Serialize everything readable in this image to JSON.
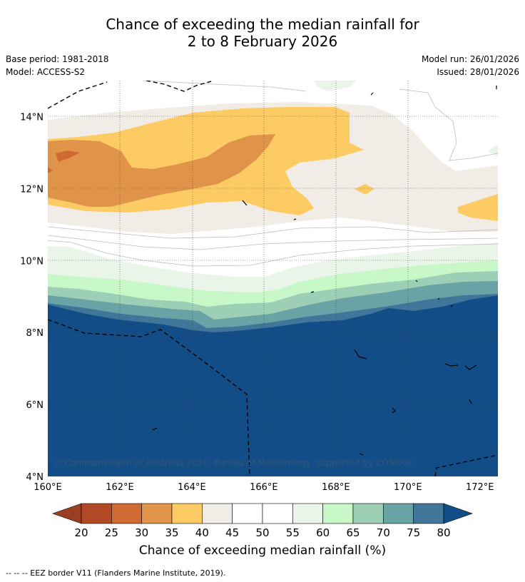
{
  "title_line1": "Chance of exceeding the median rainfall for",
  "title_line2": "2 to 8 February 2026",
  "base_period": "Base period: 1981-2018",
  "model": "Model: ACCESS-S2",
  "model_run": "Model run: 26/01/2026",
  "issued": "Issued: 28/01/2026",
  "copyright": "© Commonwealth of Australia 2026, Bureau of Meteorology, supported by COSPPac",
  "x_ticks": [
    {
      "lon": 160,
      "label": "160°E"
    },
    {
      "lon": 162,
      "label": "162°E"
    },
    {
      "lon": 164,
      "label": "164°E"
    },
    {
      "lon": 166,
      "label": "166°E"
    },
    {
      "lon": 168,
      "label": "168°E"
    },
    {
      "lon": 170,
      "label": "170°E"
    },
    {
      "lon": 172,
      "label": "172°E"
    }
  ],
  "y_ticks": [
    {
      "lat": 4,
      "label": "4°N"
    },
    {
      "lat": 6,
      "label": "6°N"
    },
    {
      "lat": 8,
      "label": "8°N"
    },
    {
      "lat": 10,
      "label": "10°N"
    },
    {
      "lat": 12,
      "label": "12°N"
    },
    {
      "lat": 14,
      "label": "14°N"
    }
  ],
  "colorbar": {
    "label": "Chance of exceeding median rainfall (%)",
    "ticks": [
      "20",
      "25",
      "30",
      "35",
      "40",
      "45",
      "50",
      "55",
      "60",
      "65",
      "70",
      "75",
      "80"
    ],
    "colors": {
      "under": "#9c3e23",
      "bins": [
        "#b34a27",
        "#cf6a33",
        "#e0944a",
        "#fdcb63",
        "#f1ece6",
        "#ffffff",
        "#ffffff",
        "#e9f5e9",
        "#c8f7c8",
        "#9ccfb6",
        "#6aa3a5",
        "#3f7699"
      ],
      "over": "#124d87"
    }
  },
  "footnote": "--  --  -- EEZ border V11 (Flanders Marine Institute, 2019)."
}
